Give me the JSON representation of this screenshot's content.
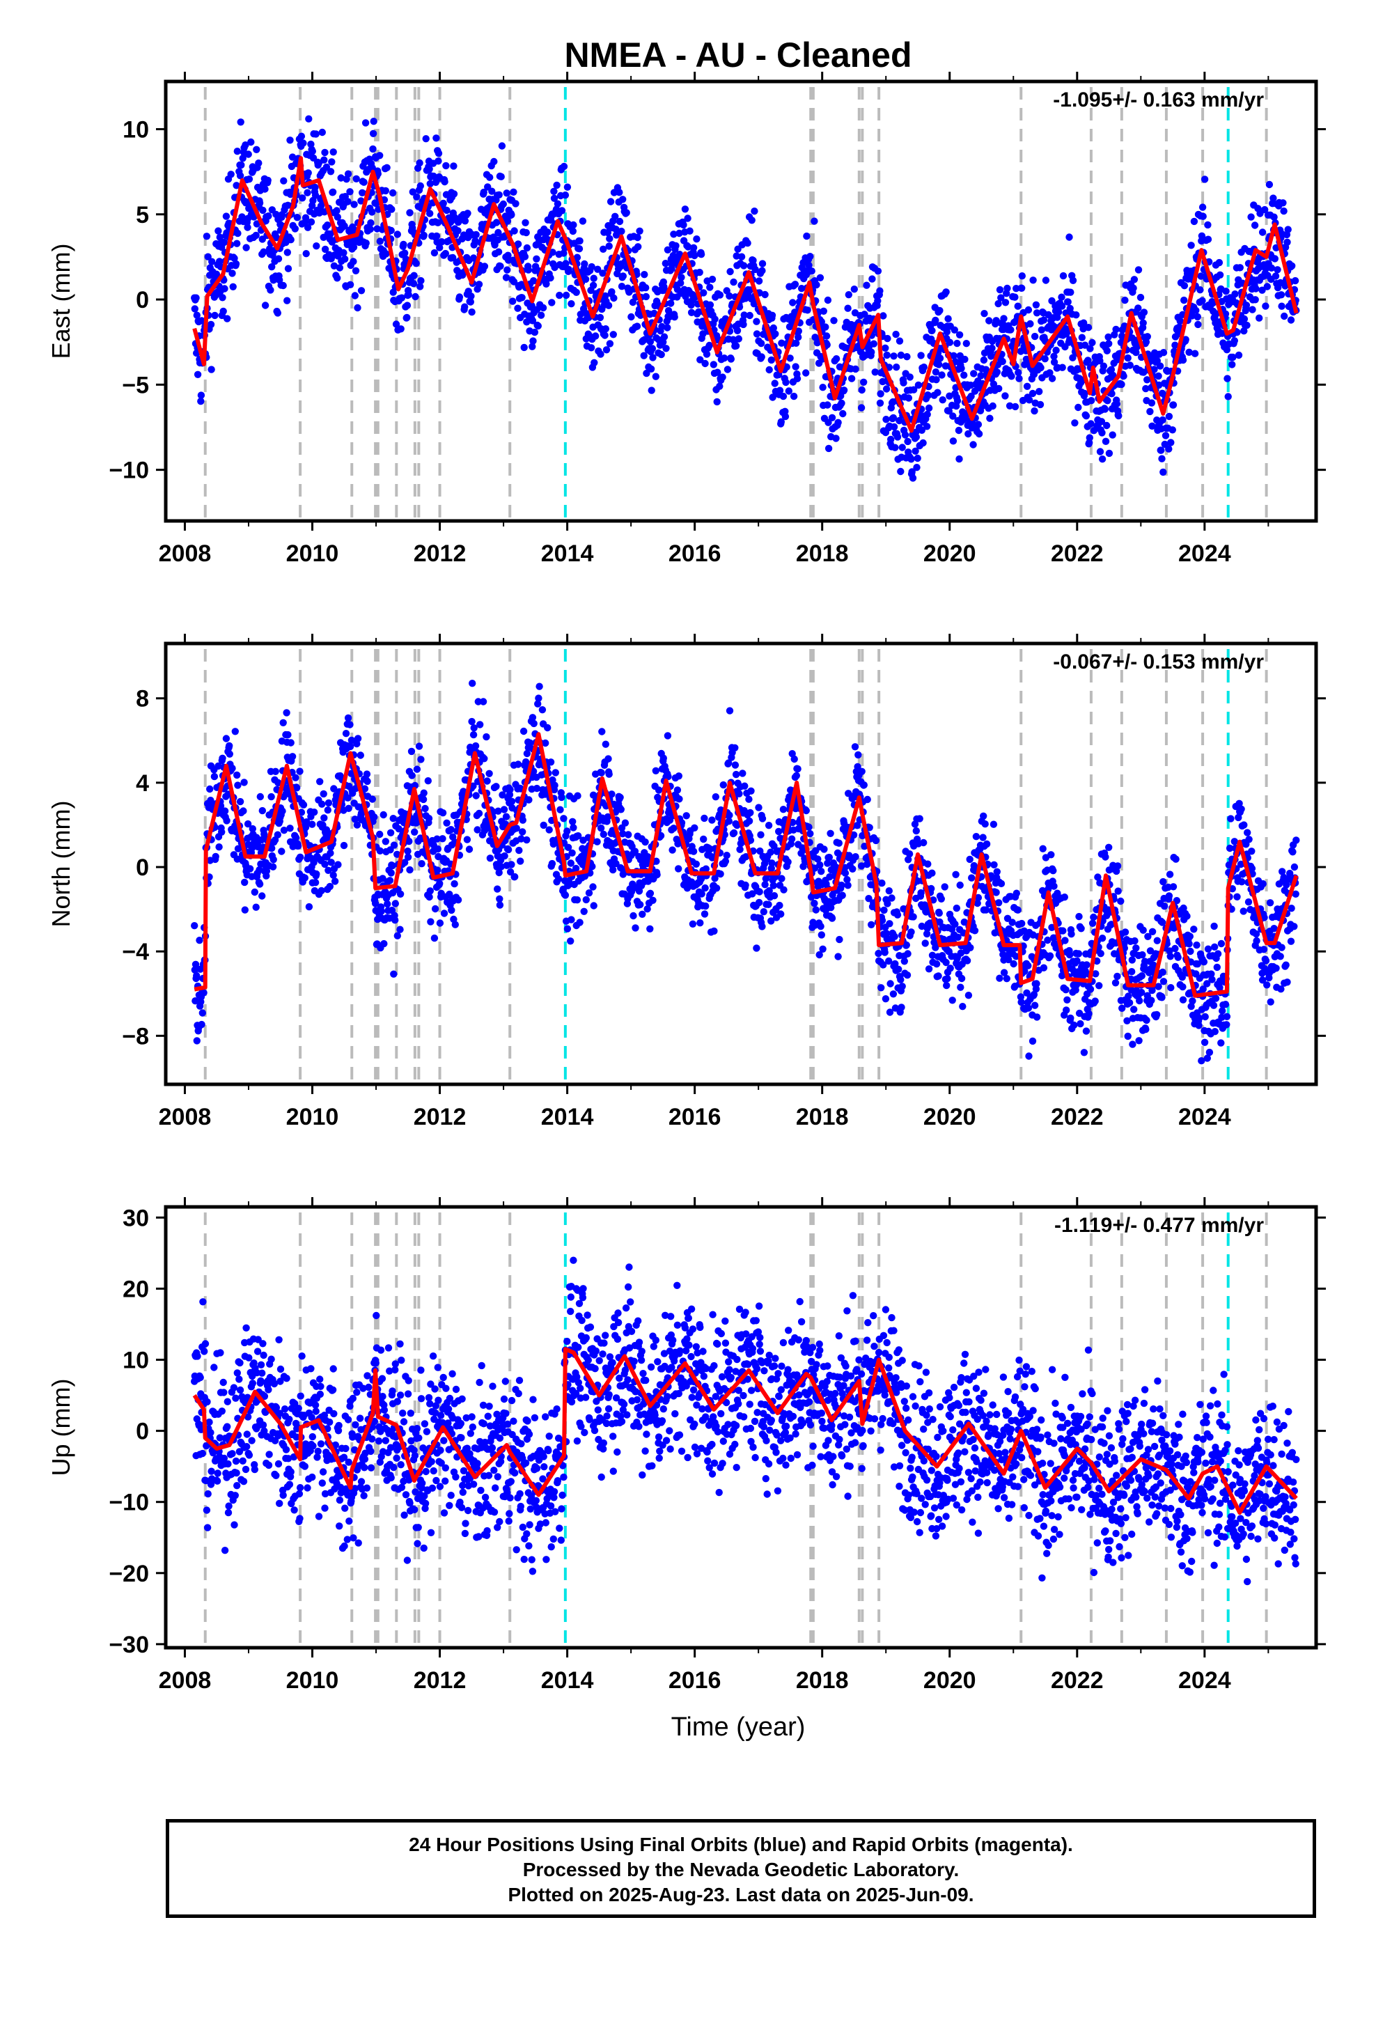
{
  "chart_data": {
    "type": "scatter",
    "title": "NMEA  - AU - Cleaned",
    "xlabel": "Time (year)",
    "xlim": [
      2007.7,
      2025.75
    ],
    "x_ticks": [
      2008,
      2010,
      2012,
      2014,
      2016,
      2018,
      2020,
      2022,
      2024
    ],
    "x_tick_labels": [
      "2008",
      "2010",
      "2012",
      "2014",
      "2016",
      "2018",
      "2020",
      "2022",
      "2024"
    ],
    "data_span": [
      2008.15,
      2025.44
    ],
    "series_colors": {
      "points": "#0000ff",
      "model": "#ff0000"
    },
    "event_lines": {
      "gray": [
        2008.32,
        2009.81,
        2010.62,
        2010.99,
        2011.03,
        2011.32,
        2011.61,
        2011.67,
        2012.0,
        2013.1,
        2017.82,
        2017.86,
        2018.58,
        2018.63,
        2018.89,
        2021.12,
        2022.22,
        2022.7,
        2023.4,
        2023.97,
        2024.97
      ],
      "cyan": [
        2013.97,
        2024.37
      ],
      "gray_color": "#bbbbbb",
      "cyan_color": "#00e5e5"
    },
    "panels": [
      {
        "ylabel": "East (mm)",
        "ylim": [
          -13,
          12.8
        ],
        "y_ticks": [
          -10,
          -5,
          0,
          5,
          10
        ],
        "y_tick_labels": [
          "−10",
          "−5",
          "0",
          "5",
          "10"
        ],
        "rate": "-1.095+/- 0.163 mm/yr",
        "model_x": [
          2008.15,
          2008.3,
          2008.35,
          2008.6,
          2008.9,
          2009.2,
          2009.45,
          2009.7,
          2009.82,
          2009.85,
          2010.1,
          2010.4,
          2010.7,
          2010.95,
          2011.05,
          2011.35,
          2011.5,
          2011.85,
          2012.1,
          2012.5,
          2012.85,
          2013.15,
          2013.45,
          2013.85,
          2013.98,
          2014.4,
          2014.85,
          2015.3,
          2015.85,
          2016.35,
          2016.85,
          2017.35,
          2017.8,
          2017.86,
          2018.2,
          2018.58,
          2018.63,
          2018.88,
          2018.92,
          2019.4,
          2019.85,
          2020.35,
          2020.85,
          2021.0,
          2021.12,
          2021.3,
          2021.85,
          2022.2,
          2022.25,
          2022.35,
          2022.65,
          2022.85,
          2023.35,
          2023.5,
          2023.95,
          2024.35,
          2024.45,
          2024.8,
          2024.97,
          2025.1,
          2025.44
        ],
        "model_y": [
          -1.7,
          -3.8,
          0.2,
          1.5,
          7.0,
          4.5,
          3.0,
          5.5,
          8.3,
          6.7,
          7.0,
          3.5,
          3.8,
          7.5,
          6.2,
          0.6,
          1.8,
          6.5,
          4.5,
          1.0,
          5.6,
          3.2,
          -0.1,
          4.6,
          3.5,
          -1.0,
          3.7,
          -2.0,
          2.7,
          -3.1,
          1.6,
          -4.2,
          1.0,
          -0.3,
          -5.8,
          -1.5,
          -2.8,
          -0.9,
          -3.5,
          -7.7,
          -2.0,
          -7.0,
          -2.3,
          -3.8,
          -1.0,
          -3.9,
          -1.0,
          -5.5,
          -4.0,
          -6.0,
          -4.5,
          -0.8,
          -6.7,
          -4.5,
          2.9,
          -2.0,
          -1.8,
          2.9,
          2.5,
          4.4,
          -0.8
        ],
        "cloud_amp": 5.5
      },
      {
        "ylabel": "North (mm)",
        "ylim": [
          -10.3,
          10.6
        ],
        "y_ticks": [
          -8,
          -4,
          0,
          4,
          8
        ],
        "y_tick_labels": [
          "−8",
          "−4",
          "0",
          "4",
          "8"
        ],
        "rate": "-0.067+/- 0.153 mm/yr",
        "model_x": [
          2008.15,
          2008.32,
          2008.33,
          2008.65,
          2008.95,
          2009.25,
          2009.6,
          2009.9,
          2010.3,
          2010.6,
          2010.95,
          2010.99,
          2011.3,
          2011.6,
          2011.9,
          2012.2,
          2012.55,
          2012.9,
          2013.1,
          2013.2,
          2013.55,
          2013.95,
          2013.97,
          2014.3,
          2014.55,
          2014.95,
          2015.3,
          2015.55,
          2015.95,
          2016.3,
          2016.55,
          2016.95,
          2017.3,
          2017.6,
          2017.82,
          2017.86,
          2018.2,
          2018.58,
          2018.63,
          2018.85,
          2018.89,
          2019.25,
          2019.5,
          2019.85,
          2020.25,
          2020.5,
          2020.85,
          2021.1,
          2021.12,
          2021.3,
          2021.55,
          2021.85,
          2022.2,
          2022.45,
          2022.8,
          2023.2,
          2023.5,
          2023.85,
          2024.35,
          2024.37,
          2024.55,
          2024.97,
          2025.1,
          2025.44
        ],
        "model_y": [
          -5.8,
          -5.7,
          0.8,
          4.8,
          0.5,
          0.5,
          4.8,
          0.7,
          1.2,
          5.4,
          1.4,
          -1.0,
          -0.9,
          3.7,
          -0.5,
          -0.3,
          5.4,
          1.0,
          2.0,
          2.1,
          6.3,
          0.2,
          -0.4,
          -0.2,
          4.2,
          -0.2,
          -0.2,
          4.1,
          -0.3,
          -0.3,
          4.0,
          -0.3,
          -0.3,
          4.0,
          -0.2,
          -1.2,
          -1.0,
          3.3,
          2.5,
          -0.8,
          -3.7,
          -3.6,
          0.6,
          -3.7,
          -3.6,
          0.6,
          -3.7,
          -3.7,
          -5.5,
          -5.3,
          -1.2,
          -5.3,
          -5.4,
          -0.4,
          -5.6,
          -5.6,
          -1.7,
          -6.1,
          -5.9,
          -1.0,
          1.2,
          -3.6,
          -3.6,
          -0.4
        ],
        "cloud_amp": 4.3
      },
      {
        "ylabel": "Up (mm)",
        "ylim": [
          -30.5,
          31.5
        ],
        "y_ticks": [
          -30,
          -20,
          -10,
          0,
          10,
          20,
          30
        ],
        "y_tick_labels": [
          "−30",
          "−20",
          "−10",
          "0",
          "10",
          "20",
          "30"
        ],
        "rate": "-1.119+/- 0.477 mm/yr",
        "model_x": [
          2008.15,
          2008.3,
          2008.32,
          2008.5,
          2008.7,
          2009.1,
          2009.5,
          2009.81,
          2009.82,
          2010.1,
          2010.6,
          2010.62,
          2010.95,
          2010.99,
          2011.03,
          2011.32,
          2011.6,
          2012.05,
          2012.55,
          2013.05,
          2013.1,
          2013.55,
          2013.95,
          2013.97,
          2014.1,
          2014.5,
          2014.9,
          2015.3,
          2015.85,
          2016.3,
          2016.85,
          2017.3,
          2017.75,
          2017.82,
          2018.15,
          2018.58,
          2018.63,
          2018.89,
          2019.3,
          2019.8,
          2020.3,
          2020.85,
          2021.12,
          2021.5,
          2022.0,
          2022.22,
          2022.5,
          2023.0,
          2023.4,
          2023.75,
          2023.97,
          2024.2,
          2024.55,
          2024.97,
          2025.44
        ],
        "model_y": [
          5.0,
          3.0,
          -1.0,
          -2.5,
          -2.0,
          5.5,
          1.0,
          -4.0,
          0.5,
          1.5,
          -8.0,
          -5.5,
          2.5,
          8.5,
          2.0,
          0.8,
          -7.0,
          0.5,
          -6.5,
          -2.0,
          -3.0,
          -9.0,
          -3.5,
          11.5,
          11.0,
          5.0,
          10.5,
          3.5,
          9.5,
          3.0,
          8.5,
          2.5,
          8.0,
          7.5,
          1.5,
          7.0,
          1.0,
          10.0,
          0.0,
          -5.0,
          1.0,
          -6.0,
          0.0,
          -8.0,
          -2.5,
          -4.5,
          -8.5,
          -4.0,
          -5.5,
          -9.5,
          -6.0,
          -5.0,
          -11.5,
          -5.0,
          -9.5
        ],
        "cloud_amp": 17
      }
    ]
  },
  "footer": {
    "line1": "24 Hour Positions Using Final Orbits (blue) and Rapid Orbits (magenta).",
    "line2": "Processed by the Nevada Geodetic Laboratory.",
    "line3": "Plotted on 2025-Aug-23. Last data on 2025-Jun-09."
  }
}
